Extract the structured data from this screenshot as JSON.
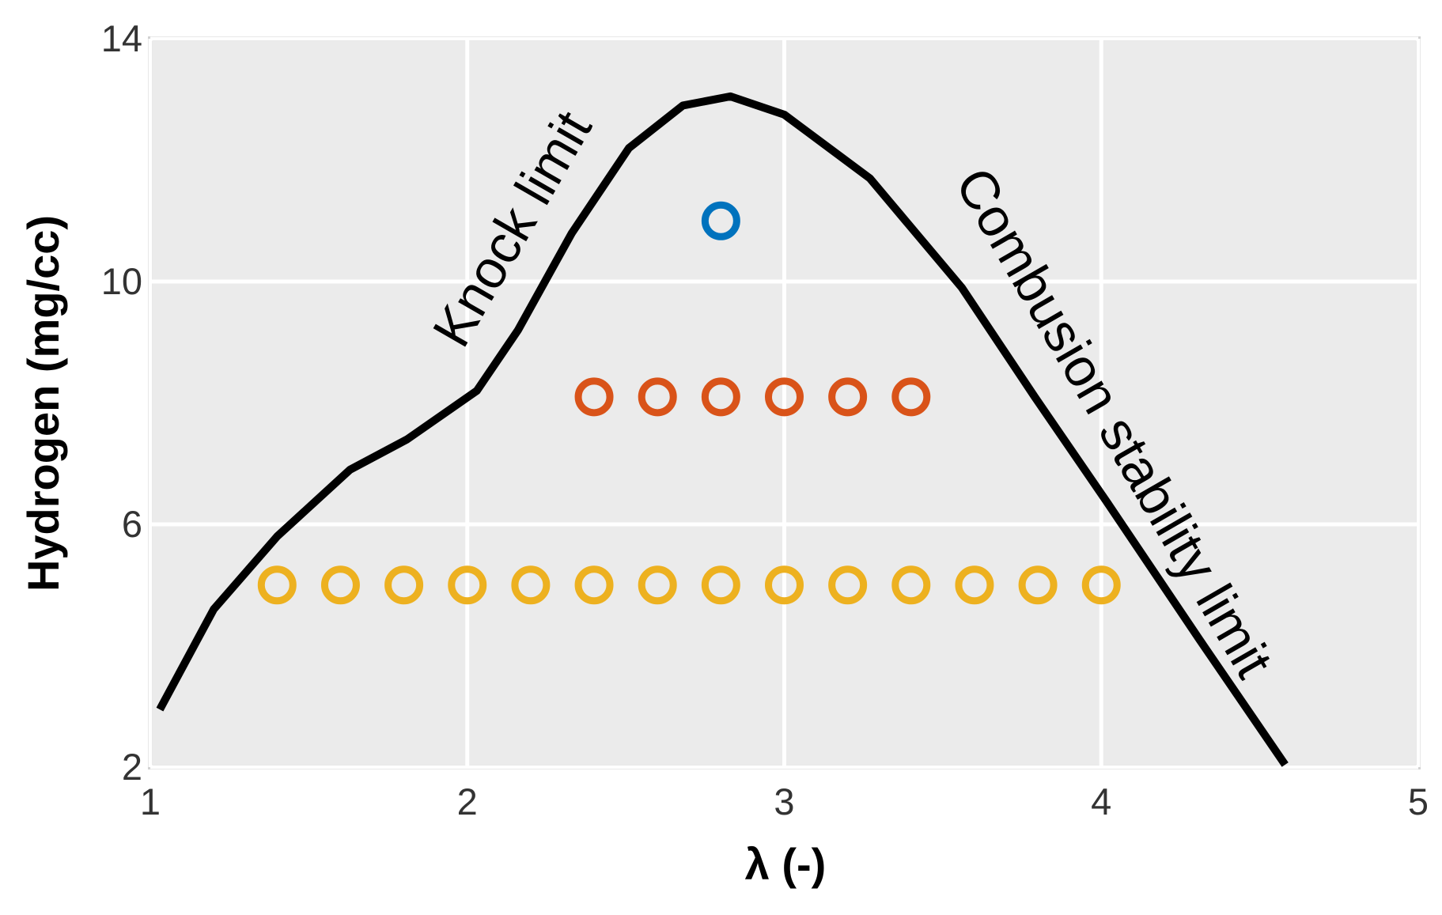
{
  "chart_data": {
    "type": "line",
    "xlabel": "λ (-)",
    "ylabel": "Hydrogen (mg/cc)",
    "xlim": [
      1,
      5
    ],
    "ylim": [
      2,
      14
    ],
    "xticks": [
      1,
      2,
      3,
      4,
      5
    ],
    "yticks": [
      2,
      6,
      10,
      14
    ],
    "grid": true,
    "annotations": [
      "Knock limit",
      "Combusion stability limit"
    ],
    "series": [
      {
        "type": "line",
        "color": "#000000",
        "x": [
          1.03,
          1.2,
          1.4,
          1.63,
          1.81,
          2.03,
          2.16,
          2.33,
          2.51,
          2.68,
          2.83,
          3.0,
          3.27,
          3.56,
          3.79,
          4.02,
          4.31,
          4.58
        ],
        "values": [
          2.95,
          4.6,
          5.8,
          6.9,
          7.4,
          8.2,
          9.2,
          10.8,
          12.2,
          12.9,
          13.05,
          12.75,
          11.7,
          9.9,
          8.1,
          6.35,
          4.1,
          2.04
        ]
      },
      {
        "type": "scatter",
        "color": "#0072bd",
        "x": [
          2.8
        ],
        "values": [
          11
        ]
      },
      {
        "type": "scatter",
        "color": "#d95319",
        "x": [
          2.4,
          2.6,
          2.8,
          3.0,
          3.2,
          3.4
        ],
        "values": [
          8.1,
          8.1,
          8.1,
          8.1,
          8.1,
          8.1
        ]
      },
      {
        "type": "scatter",
        "color": "#edb120",
        "x": [
          1.4,
          1.6,
          1.8,
          2.0,
          2.2,
          2.4,
          2.6,
          2.8,
          3.0,
          3.2,
          3.4,
          3.6,
          3.8,
          4.0
        ],
        "values": [
          5,
          5,
          5,
          5,
          5,
          5,
          5,
          5,
          5,
          5,
          5,
          5,
          5,
          5
        ]
      }
    ]
  }
}
